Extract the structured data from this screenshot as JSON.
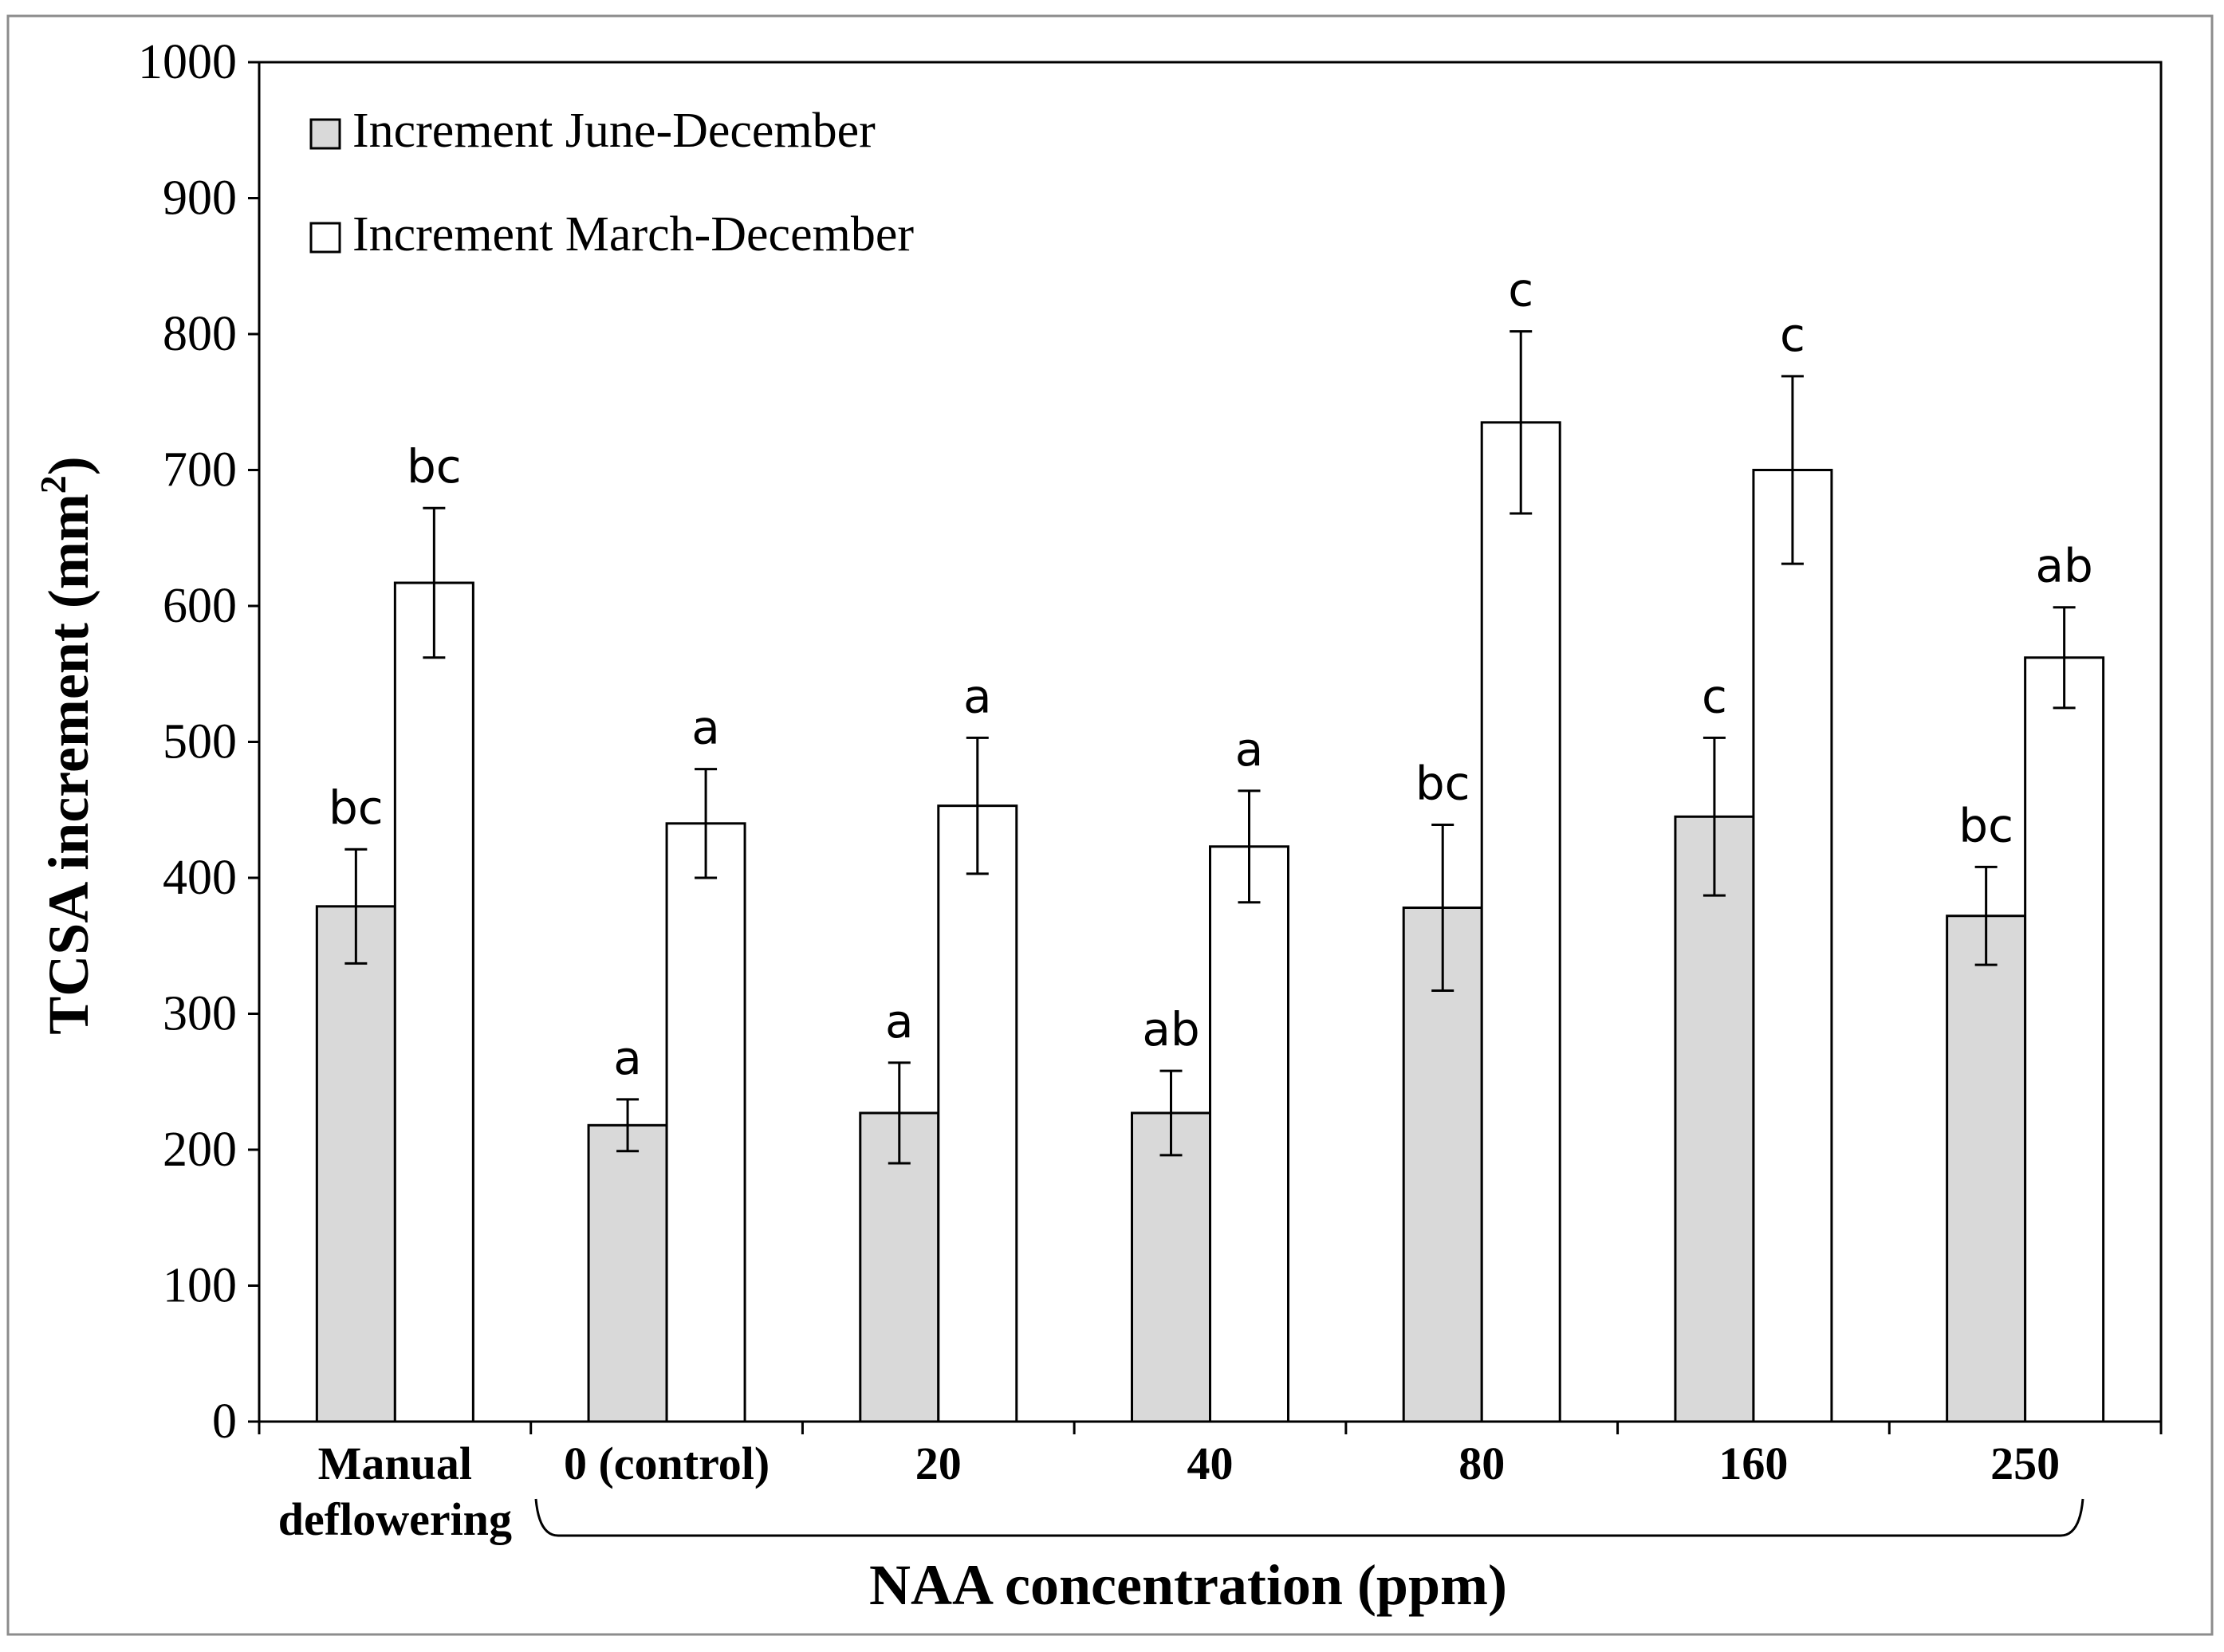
{
  "chart_data": {
    "type": "bar",
    "title": "",
    "ylabel": "TCSA increment (mm",
    "ylabel_superscript": "2",
    "ylabel_end": ")",
    "xlabel": "NAA concentration (ppm)",
    "ylim": [
      0,
      1000
    ],
    "yticks": [
      0,
      100,
      200,
      300,
      400,
      500,
      600,
      700,
      800,
      900,
      1000
    ],
    "grid": false,
    "legend_position": "top-left",
    "categories": [
      [
        "Manual",
        "deflowering"
      ],
      [
        "0 (control)"
      ],
      [
        "20"
      ],
      [
        "40"
      ],
      [
        "80"
      ],
      [
        "160"
      ],
      [
        "250"
      ]
    ],
    "series": [
      {
        "name": "Increment June-December",
        "color": "#d9d9d9",
        "values": [
          379,
          218,
          227,
          227,
          378,
          445,
          372
        ],
        "errors": [
          42,
          19,
          37,
          31,
          61,
          58,
          36
        ],
        "letters": [
          "bc",
          "a",
          "a",
          "ab",
          "bc",
          "c",
          "bc"
        ]
      },
      {
        "name": "Increment March-December",
        "color": "#ffffff",
        "values": [
          617,
          440,
          453,
          423,
          735,
          700,
          562
        ],
        "errors": [
          55,
          40,
          50,
          41,
          67,
          69,
          37
        ],
        "letters": [
          "bc",
          "a",
          "a",
          "a",
          "c",
          "c",
          "ab"
        ]
      }
    ]
  }
}
